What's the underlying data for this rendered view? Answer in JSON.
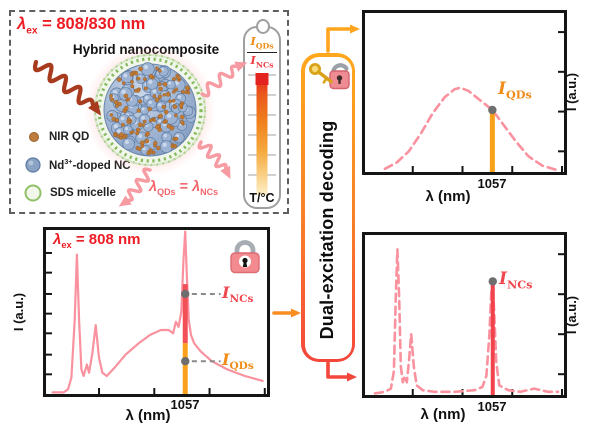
{
  "colors": {
    "red_text": "#ed1c24",
    "curve_pink": "#f9929e",
    "annotation_orange": "#f9a11b",
    "annotation_red": "#f24f57",
    "arrow_orange": "#ffa51d",
    "arrow_red": "#f4473c",
    "pink_arrow": "#f79ba3",
    "dark_red_arrow": "#a83a1e",
    "marker_dot_gray": "#6e6e6e"
  },
  "scheme": {
    "excitation": {
      "symbol": "λ",
      "sub": "ex",
      "rest": " = 808/830 nm"
    },
    "title": "Hybrid nanocomposite",
    "legend": [
      {
        "label": "NIR QD"
      },
      {
        "pre": "Nd",
        "sup": "3+",
        "post": "-doped NC"
      },
      {
        "label": "SDS micelle"
      }
    ],
    "equality": {
      "sym1": "λ",
      "sub1": "QDs",
      "eq": " = ",
      "sym2": "λ",
      "sub2": "NCs"
    },
    "thermometer": {
      "num_sym": "I",
      "num_sub": "QDs",
      "den_sym": "I",
      "den_sub": "NCs",
      "scale_label": "T/°C",
      "gradient_top_to_bottom": [
        "#e3231f",
        "#f0831f",
        "#f9cc7f",
        "#fdf0c8"
      ]
    }
  },
  "decoder": {
    "label": "Dual-excitation decoding",
    "icon": "key-open-lock"
  },
  "panels": {
    "mixed": {
      "excitation": {
        "symbol": "λ",
        "sub": "ex",
        "rest": " = 808 nm"
      },
      "icon": "closed-lock",
      "xlabel": "λ (nm)",
      "ylabel": "I (a.u.)",
      "x_tick_label": "1057",
      "marker_ncs": {
        "symbol": "I",
        "sub": "NCs"
      },
      "marker_qds": {
        "symbol": "I",
        "sub": "QDs"
      },
      "chart_data": {
        "type": "line",
        "style": "solid",
        "color": "#f9929e",
        "stroke_width": 2.2,
        "xlabel": "λ (nm)",
        "ylabel": "I (a.u.)",
        "ylim": [
          0,
          1
        ],
        "x_unit": "axis fraction; 1057 nm tick at x=0.63",
        "points": [
          [
            0.03,
            0.01
          ],
          [
            0.08,
            0.01
          ],
          [
            0.1,
            0.03
          ],
          [
            0.115,
            0.1
          ],
          [
            0.13,
            0.45
          ],
          [
            0.14,
            0.85
          ],
          [
            0.15,
            0.45
          ],
          [
            0.16,
            0.15
          ],
          [
            0.17,
            0.11
          ],
          [
            0.185,
            0.18
          ],
          [
            0.195,
            0.13
          ],
          [
            0.21,
            0.25
          ],
          [
            0.225,
            0.42
          ],
          [
            0.24,
            0.22
          ],
          [
            0.255,
            0.13
          ],
          [
            0.275,
            0.11
          ],
          [
            0.31,
            0.16
          ],
          [
            0.36,
            0.24
          ],
          [
            0.42,
            0.31
          ],
          [
            0.47,
            0.36
          ],
          [
            0.52,
            0.39
          ],
          [
            0.555,
            0.39
          ],
          [
            0.575,
            0.37
          ],
          [
            0.588,
            0.44
          ],
          [
            0.6,
            0.41
          ],
          [
            0.612,
            0.5
          ],
          [
            0.622,
            0.82
          ],
          [
            0.63,
            0.99
          ],
          [
            0.638,
            0.7
          ],
          [
            0.646,
            0.45
          ],
          [
            0.656,
            0.36
          ],
          [
            0.67,
            0.31
          ],
          [
            0.7,
            0.26
          ],
          [
            0.75,
            0.2
          ],
          [
            0.82,
            0.15
          ],
          [
            0.9,
            0.11
          ],
          [
            0.98,
            0.08
          ]
        ],
        "x_ticks": [
          0.24,
          0.49,
          0.74,
          0.99
        ],
        "y_ticks": [
          0.12,
          0.24,
          0.37,
          0.49,
          0.61,
          0.74,
          0.86
        ],
        "y_axis_side": "left",
        "labeled_x": {
          "pos": 0.63,
          "label": "1057"
        },
        "bars": [
          {
            "x": 0.63,
            "y0": 0,
            "y1": 0.31,
            "color": "#f9a11b",
            "width": 5
          },
          {
            "x": 0.63,
            "y0": 0.31,
            "y1": 0.67,
            "color": "#f24f57",
            "width": 5
          }
        ],
        "dots": [
          {
            "x": 0.63,
            "y": 0.61
          },
          {
            "x": 0.63,
            "y": 0.2
          }
        ],
        "connectors": [
          {
            "y": 0.61,
            "x0": 0.66,
            "x1": 0.79
          },
          {
            "y": 0.2,
            "x0": 0.66,
            "x1": 0.79
          }
        ]
      }
    },
    "qds": {
      "xlabel": "λ (nm)",
      "ylabel": "I (a.u.)",
      "x_tick_label": "1057",
      "marker": {
        "symbol": "I",
        "sub": "QDs"
      },
      "chart_data": {
        "type": "line",
        "style": "dashed",
        "color": "#f9929e",
        "stroke_width": 2.6,
        "xlabel": "λ (nm)",
        "ylabel": "I (a.u.)",
        "ylim": [
          0,
          1
        ],
        "x_unit": "axis fraction; 1057 nm tick at x=0.64",
        "points": [
          [
            0.1,
            0.02
          ],
          [
            0.16,
            0.06
          ],
          [
            0.22,
            0.13
          ],
          [
            0.28,
            0.24
          ],
          [
            0.34,
            0.37
          ],
          [
            0.4,
            0.47
          ],
          [
            0.45,
            0.52
          ],
          [
            0.48,
            0.53
          ],
          [
            0.52,
            0.51
          ],
          [
            0.57,
            0.46
          ],
          [
            0.62,
            0.41
          ],
          [
            0.64,
            0.39
          ],
          [
            0.7,
            0.29
          ],
          [
            0.76,
            0.19
          ],
          [
            0.82,
            0.1
          ],
          [
            0.89,
            0.04
          ],
          [
            0.97,
            0.01
          ]
        ],
        "x_ticks": [
          0.24,
          0.49,
          0.74,
          0.99
        ],
        "y_ticks": [
          0.13,
          0.38,
          0.63,
          0.88
        ],
        "y_axis_side": "right",
        "labeled_x": {
          "pos": 0.64,
          "label": "1057"
        },
        "bars": [
          {
            "x": 0.64,
            "y0": 0,
            "y1": 0.39,
            "color": "#f9a11b",
            "width": 5
          }
        ],
        "dots": [
          {
            "x": 0.64,
            "y": 0.39
          }
        ],
        "connectors": []
      }
    },
    "ncs": {
      "xlabel": "λ (nm)",
      "ylabel": "I (a.u.)",
      "x_tick_label": "1057",
      "marker": {
        "symbol": "I",
        "sub": "NCs"
      },
      "chart_data": {
        "type": "line",
        "style": "dashed",
        "color": "#f9929e",
        "stroke_width": 2.6,
        "xlabel": "λ (nm)",
        "ylabel": "I (a.u.)",
        "ylim": [
          0,
          1
        ],
        "x_unit": "axis fraction; 1057 nm tick at x=0.64",
        "points": [
          [
            0.05,
            0.01
          ],
          [
            0.1,
            0.02
          ],
          [
            0.13,
            0.04
          ],
          [
            0.145,
            0.15
          ],
          [
            0.155,
            0.62
          ],
          [
            0.163,
            0.91
          ],
          [
            0.172,
            0.6
          ],
          [
            0.18,
            0.18
          ],
          [
            0.19,
            0.08
          ],
          [
            0.2,
            0.12
          ],
          [
            0.21,
            0.08
          ],
          [
            0.22,
            0.2
          ],
          [
            0.232,
            0.38
          ],
          [
            0.245,
            0.18
          ],
          [
            0.26,
            0.06
          ],
          [
            0.29,
            0.03
          ],
          [
            0.35,
            0.02
          ],
          [
            0.45,
            0.02
          ],
          [
            0.55,
            0.03
          ],
          [
            0.59,
            0.05
          ],
          [
            0.61,
            0.12
          ],
          [
            0.625,
            0.38
          ],
          [
            0.635,
            0.66
          ],
          [
            0.642,
            0.71
          ],
          [
            0.65,
            0.5
          ],
          [
            0.66,
            0.2
          ],
          [
            0.675,
            0.06
          ],
          [
            0.72,
            0.03
          ],
          [
            0.78,
            0.02
          ],
          [
            0.85,
            0.04
          ],
          [
            0.92,
            0.02
          ],
          [
            0.97,
            0.02
          ]
        ],
        "x_ticks": [
          0.24,
          0.49,
          0.74,
          0.99
        ],
        "y_ticks": [
          0.13,
          0.38,
          0.63,
          0.88
        ],
        "y_axis_side": "right",
        "labeled_x": {
          "pos": 0.64,
          "label": "1057"
        },
        "bars": [
          {
            "x": 0.642,
            "y0": 0,
            "y1": 0.71,
            "color": "#f2424b",
            "width": 4
          }
        ],
        "dots": [
          {
            "x": 0.642,
            "y": 0.71
          }
        ],
        "connectors": []
      }
    }
  }
}
